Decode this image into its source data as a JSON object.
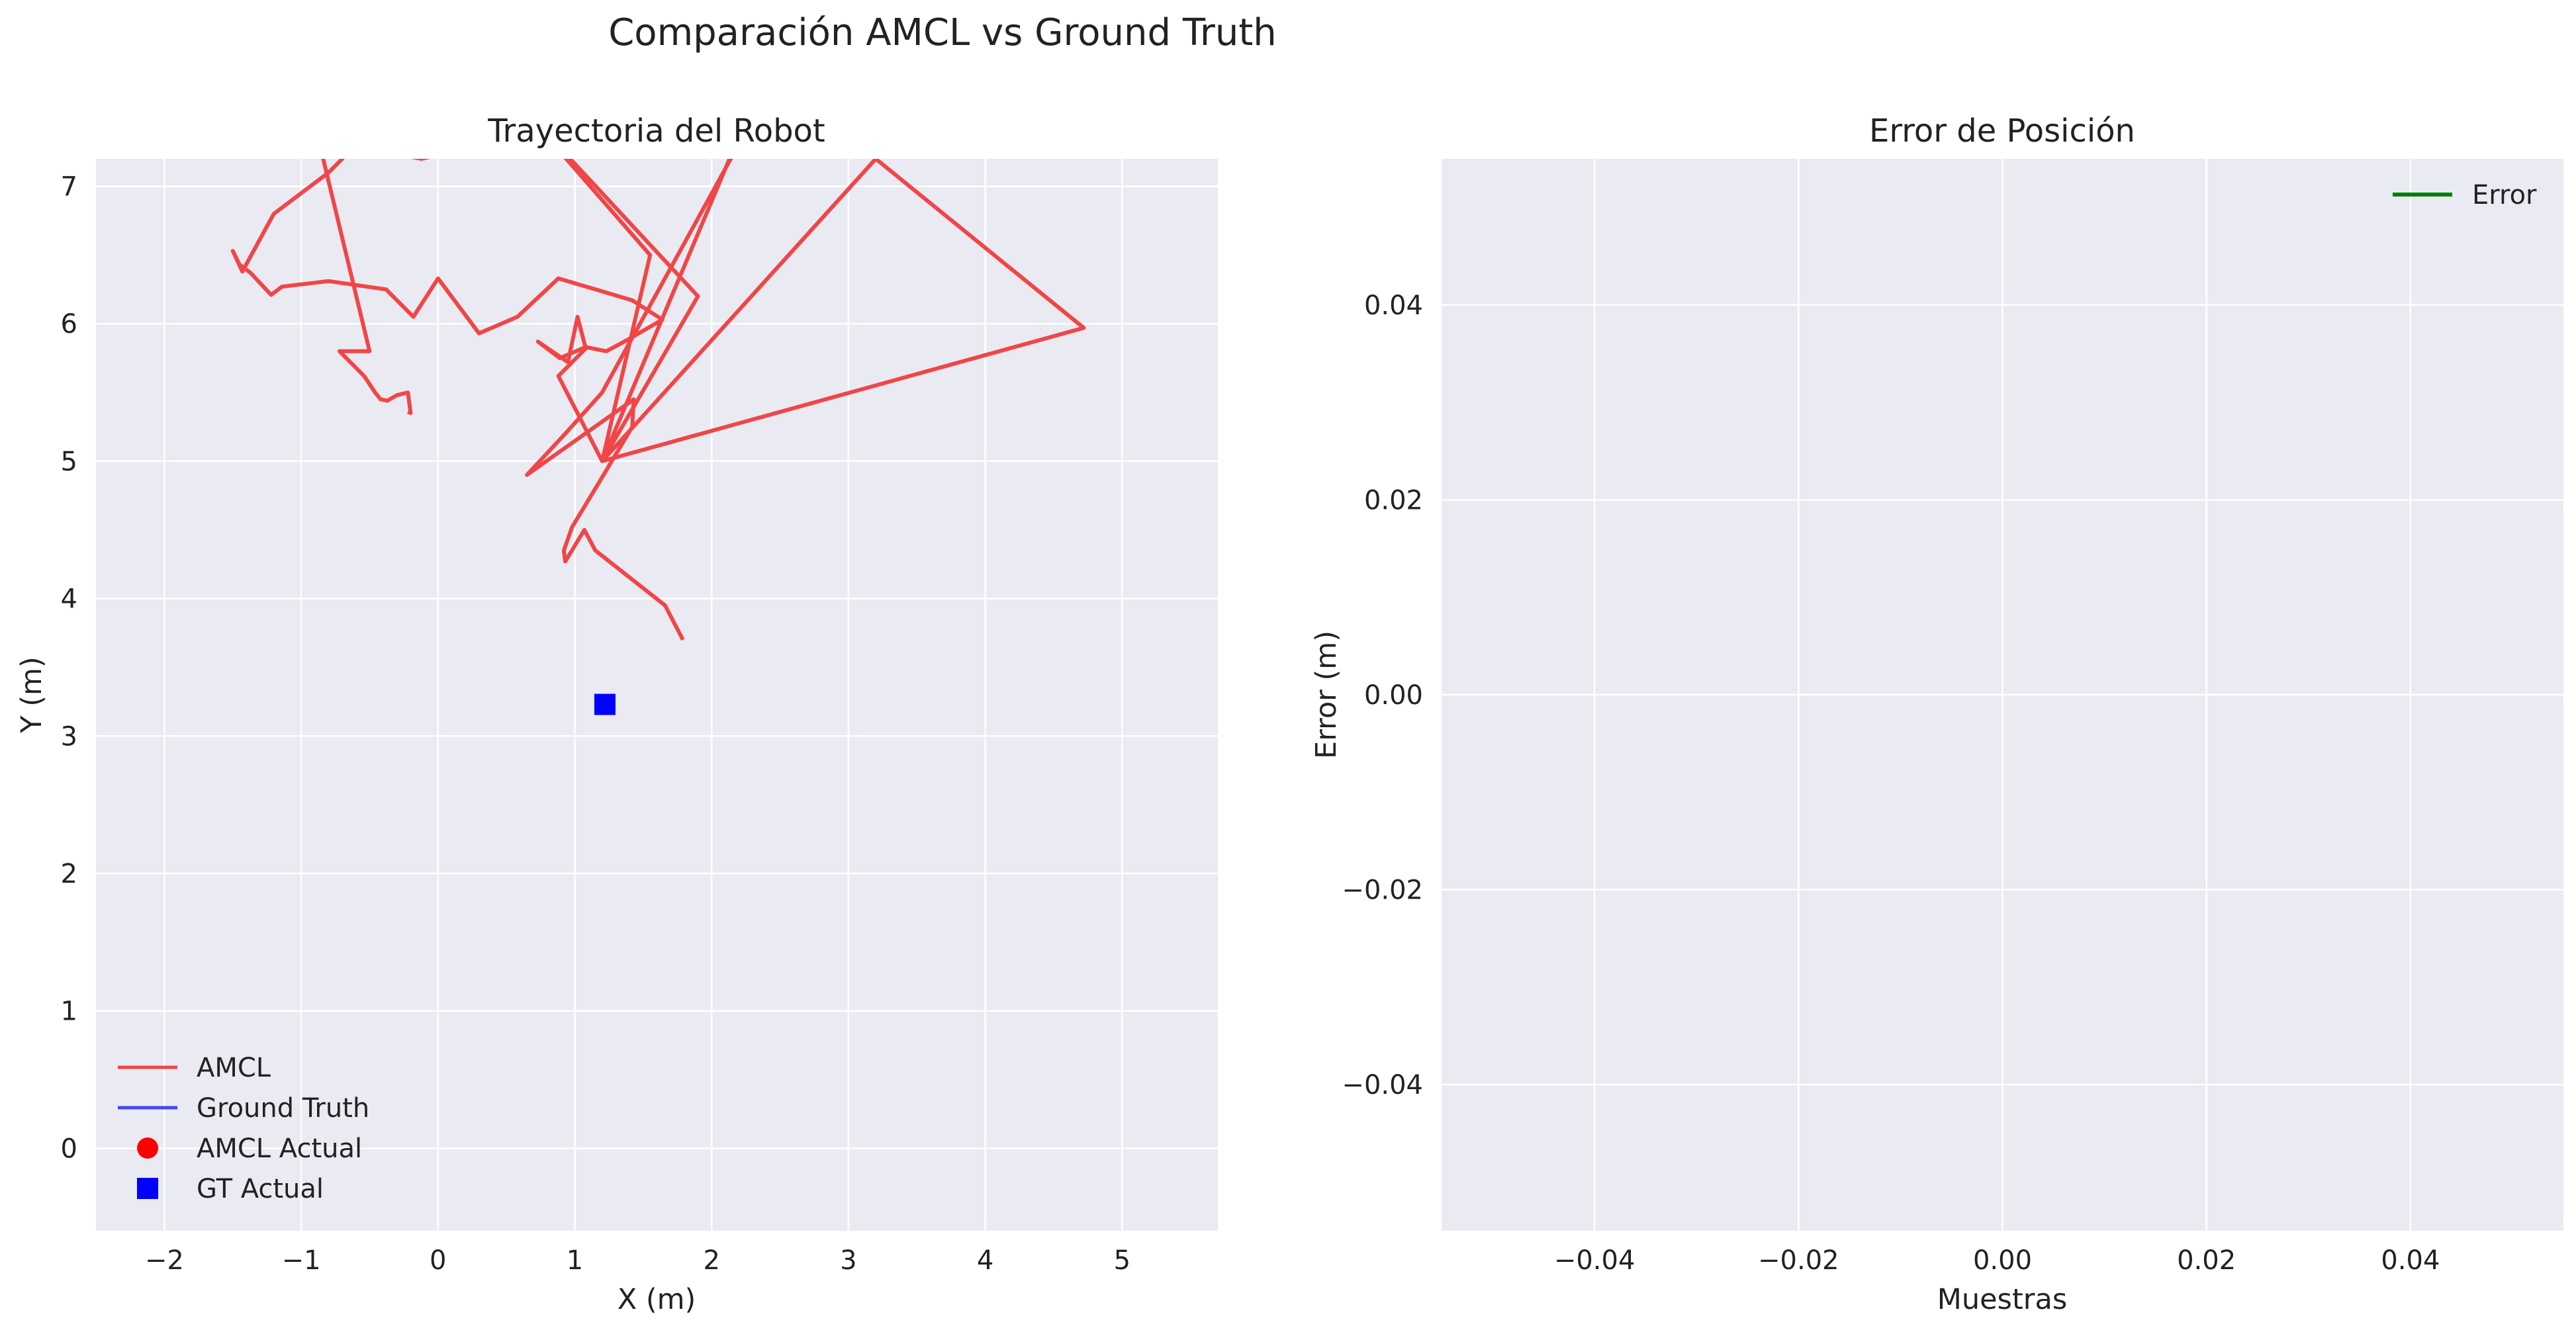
{
  "suptitle": "Comparación AMCL vs Ground Truth",
  "colors": {
    "amcl": "#f04648",
    "ground_truth": "#4646f0",
    "amcl_marker": "#ff0000",
    "gt_marker": "#0000ff",
    "error": "#008000",
    "plot_background": "#eaeaf2",
    "grid": "#ffffff"
  },
  "chart_data": [
    {
      "type": "line",
      "title": "Trayectoria del Robot",
      "xlabel": "X (m)",
      "ylabel": "Y (m)",
      "xlim": [
        -2.5,
        5.7
      ],
      "ylim": [
        -0.6,
        7.2
      ],
      "grid": true,
      "xticks": [
        -2,
        -1,
        0,
        1,
        2,
        3,
        4,
        5
      ],
      "xtick_labels": [
        "−2",
        "−1",
        "0",
        "1",
        "2",
        "3",
        "4",
        "5"
      ],
      "yticks": [
        0,
        1,
        2,
        3,
        4,
        5,
        6,
        7
      ],
      "ytick_labels": [
        "0",
        "1",
        "2",
        "3",
        "4",
        "5",
        "6",
        "7"
      ],
      "legend_position": "bottom-left",
      "legend": [
        "AMCL",
        "Ground Truth",
        "AMCL Actual",
        "GT Actual"
      ],
      "series": [
        {
          "name": "AMCL",
          "x": [
            1.79,
            1.66,
            1.15,
            1.07,
            0.93,
            0.92,
            0.98,
            1.18,
            1.42,
            1.43,
            0.65,
            0.93,
            1.2,
            2.25,
            2.3,
            1.2,
            3.2,
            4.72,
            1.2,
            1.9,
            0.5,
            1.55,
            1.2,
            0.88,
            1.08,
            1.02,
            0.95,
            0.73,
            0.89,
            1.08,
            1.23,
            1.38,
            1.64,
            1.42,
            0.88,
            0.58,
            0.3,
            0.0,
            -0.18,
            -0.38,
            -0.8,
            -1.14,
            -1.22,
            -1.37,
            -1.45,
            -1.5,
            -1.43,
            -1.2,
            -0.8,
            -0.7,
            -0.65,
            -0.12,
            0.1,
            0.3,
            -0.3,
            -1.2,
            -0.9,
            -0.5,
            -0.72,
            -0.54,
            -0.46,
            -0.42,
            -0.37,
            -0.3,
            -0.22,
            -0.2,
            -0.22
          ],
          "y": [
            3.7,
            3.95,
            4.35,
            4.5,
            4.27,
            4.35,
            4.52,
            4.85,
            5.25,
            5.45,
            4.9,
            5.2,
            5.5,
            7.4,
            7.6,
            5.0,
            7.2,
            5.97,
            5.0,
            6.2,
            7.7,
            6.5,
            5.0,
            5.62,
            5.82,
            6.05,
            5.72,
            5.87,
            5.75,
            5.83,
            5.8,
            5.88,
            6.03,
            6.17,
            6.33,
            6.05,
            5.93,
            6.33,
            6.05,
            6.25,
            6.31,
            6.27,
            6.21,
            6.37,
            6.43,
            6.53,
            6.38,
            6.8,
            7.1,
            7.2,
            7.3,
            7.2,
            7.25,
            7.3,
            7.4,
            7.4,
            7.45,
            5.8,
            5.8,
            5.62,
            5.5,
            5.45,
            5.44,
            5.48,
            5.5,
            5.35,
            5.36
          ]
        },
        {
          "name": "Ground Truth",
          "x": [],
          "y": []
        }
      ],
      "markers": [
        {
          "name": "AMCL Actual",
          "shape": "circle",
          "x": [],
          "y": []
        },
        {
          "name": "GT Actual",
          "shape": "square",
          "x": [
            1.22
          ],
          "y": [
            3.23
          ]
        }
      ]
    },
    {
      "type": "line",
      "title": "Error de Posición",
      "xlabel": "Muestras",
      "ylabel": "Error (m)",
      "xlim": [
        -0.055,
        0.055
      ],
      "ylim": [
        -0.055,
        0.055
      ],
      "grid": true,
      "xticks": [
        -0.04,
        -0.02,
        0.0,
        0.02,
        0.04
      ],
      "xtick_labels": [
        "−0.04",
        "−0.02",
        "0.00",
        "0.02",
        "0.04"
      ],
      "yticks": [
        -0.04,
        -0.02,
        0.0,
        0.02,
        0.04
      ],
      "ytick_labels": [
        "−0.04",
        "−0.02",
        "0.00",
        "0.02",
        "0.04"
      ],
      "legend_position": "top-right",
      "legend": [
        "Error"
      ],
      "series": [
        {
          "name": "Error",
          "x": [],
          "y": []
        }
      ]
    }
  ]
}
